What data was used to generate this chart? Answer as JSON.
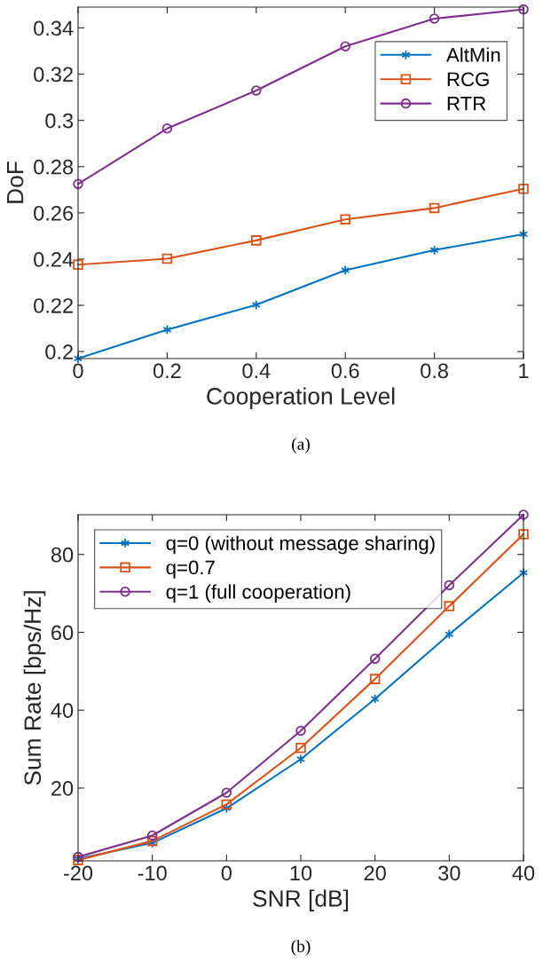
{
  "chart_data": [
    {
      "type": "line",
      "xlabel": "Cooperation Level",
      "ylabel": "DoF",
      "annotations": [
        "(a)"
      ],
      "x": [
        0,
        0.2,
        0.4,
        0.6,
        0.8,
        1
      ],
      "xlim": [
        0,
        1
      ],
      "xticks": [
        0,
        0.2,
        0.4,
        0.6,
        0.8,
        1
      ],
      "ylim": [
        0.197,
        0.349
      ],
      "yticks": [
        0.2,
        0.22,
        0.24,
        0.26,
        0.28,
        0.3,
        0.32,
        0.34
      ],
      "grid": false,
      "legend": "top right",
      "line_style": "solid",
      "series": [
        {
          "name": "AltMin",
          "color": "#0072bd",
          "marker": "cross",
          "values": [
            0.197,
            0.2095,
            0.2202,
            0.2352,
            0.2439,
            0.2508
          ]
        },
        {
          "name": "RCG",
          "color": "#d95319",
          "marker": "square",
          "values": [
            0.2376,
            0.2402,
            0.2481,
            0.2572,
            0.2621,
            0.2704
          ]
        },
        {
          "name": "RTR",
          "color": "#7e2f8e",
          "marker": "circle",
          "values": [
            0.2725,
            0.2965,
            0.3129,
            0.332,
            0.344,
            0.348
          ]
        }
      ]
    },
    {
      "type": "line",
      "xlabel": "SNR [dB]",
      "ylabel": "Sum Rate [bps/Hz]",
      "annotations": [
        "(b)"
      ],
      "x": [
        -20,
        -10,
        0,
        10,
        20,
        30,
        40
      ],
      "xlim": [
        -20,
        40
      ],
      "xticks": [
        -20,
        -10,
        0,
        10,
        20,
        30,
        40
      ],
      "ylim": [
        1.3,
        90.2
      ],
      "yticks": [
        20,
        40,
        60,
        80
      ],
      "grid": false,
      "legend": "top left",
      "line_style": "solid",
      "series": [
        {
          "name": "q=0 (without message sharing)",
          "color": "#0072bd",
          "marker": "cross",
          "values": [
            1.8,
            5.9,
            14.8,
            27.4,
            42.9,
            59.5,
            75.3
          ]
        },
        {
          "name": "q=0.7",
          "color": "#d95319",
          "marker": "square",
          "values": [
            1.5,
            6.4,
            15.8,
            30.3,
            48.0,
            66.7,
            85.2
          ]
        },
        {
          "name": "q=1 (full cooperation)",
          "color": "#7e2f8e",
          "marker": "circle",
          "values": [
            2.3,
            7.8,
            18.8,
            34.7,
            53.2,
            72.1,
            90.2
          ]
        }
      ]
    }
  ]
}
